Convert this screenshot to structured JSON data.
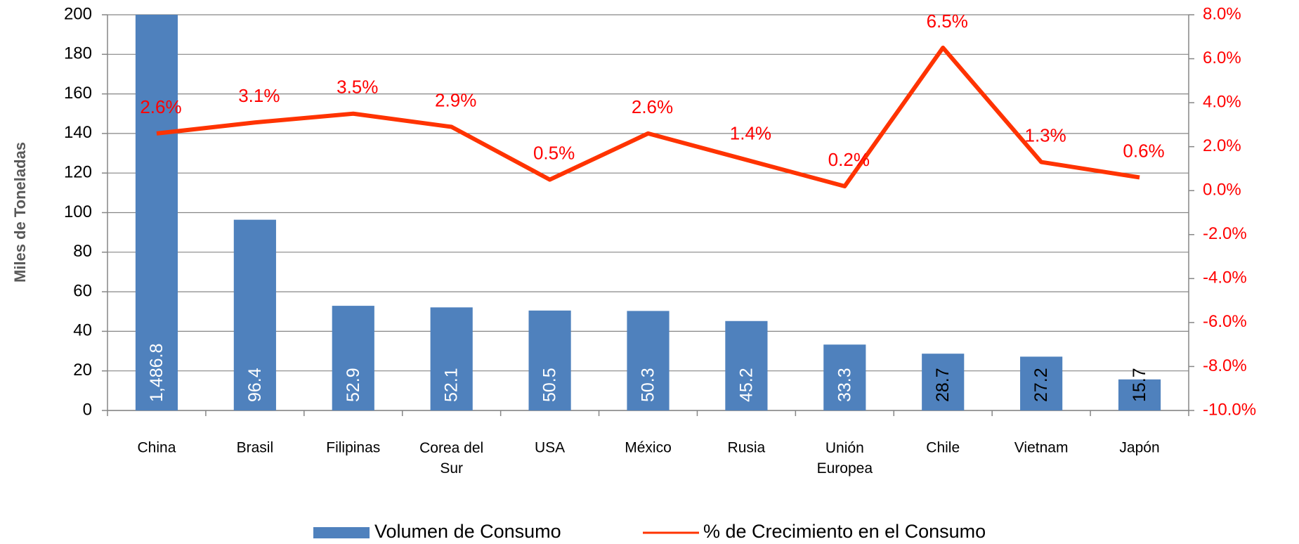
{
  "chart_data": {
    "type": "bar_line",
    "y_label": "Miles de Toneladas",
    "categories": [
      "China",
      "Brasil",
      "Filipinas",
      "Corea del Sur",
      "USA",
      "México",
      "Rusia",
      "Unión Europea",
      "Chile",
      "Vietnam",
      "Japón"
    ],
    "series": [
      {
        "name": "Volumen de Consumo",
        "type": "bar",
        "color": "#4f81bd",
        "values": [
          1486.8,
          96.4,
          52.9,
          52.1,
          50.5,
          50.3,
          45.2,
          33.3,
          28.7,
          27.2,
          15.7
        ],
        "value_labels": [
          "1,486.8",
          "96.4",
          "52.9",
          "52.1",
          "50.5",
          "50.3",
          "45.2",
          "33.3",
          "28.7",
          "27.2",
          "15.7"
        ],
        "value_label_colors": [
          "#ffffff",
          "#ffffff",
          "#ffffff",
          "#ffffff",
          "#ffffff",
          "#ffffff",
          "#ffffff",
          "#ffffff",
          "#000000",
          "#000000",
          "#000000"
        ]
      },
      {
        "name": "% de Crecimiento en el Consumo",
        "type": "line",
        "axis": "y2",
        "color": "#ff3300",
        "values": [
          2.6,
          3.1,
          3.5,
          2.9,
          0.5,
          2.6,
          1.4,
          0.2,
          6.5,
          1.3,
          0.6
        ],
        "value_labels": [
          "2.6%",
          "3.1%",
          "3.5%",
          "2.9%",
          "0.5%",
          "2.6%",
          "1.4%",
          "0.2%",
          "6.5%",
          "1.3%",
          "0.6%"
        ]
      }
    ],
    "ylim": [
      0,
      200
    ],
    "yticks": [
      0,
      20,
      40,
      60,
      80,
      100,
      120,
      140,
      160,
      180,
      200
    ],
    "y2lim": [
      -10,
      8
    ],
    "y2ticks": [
      {
        "value": -10,
        "label": "-10.0%"
      },
      {
        "value": -8,
        "label": "-8.0%"
      },
      {
        "value": -6,
        "label": "-6.0%"
      },
      {
        "value": -4,
        "label": "-4.0%"
      },
      {
        "value": -2,
        "label": "-2.0%"
      },
      {
        "value": 0,
        "label": "0.0%"
      },
      {
        "value": 2,
        "label": "2.0%"
      },
      {
        "value": 4,
        "label": "4.0%"
      },
      {
        "value": 6,
        "label": "6.0%"
      },
      {
        "value": 8,
        "label": "8.0%"
      }
    ],
    "y2_tick_color": "#ff0000",
    "grid": true,
    "legend": "bottom"
  }
}
